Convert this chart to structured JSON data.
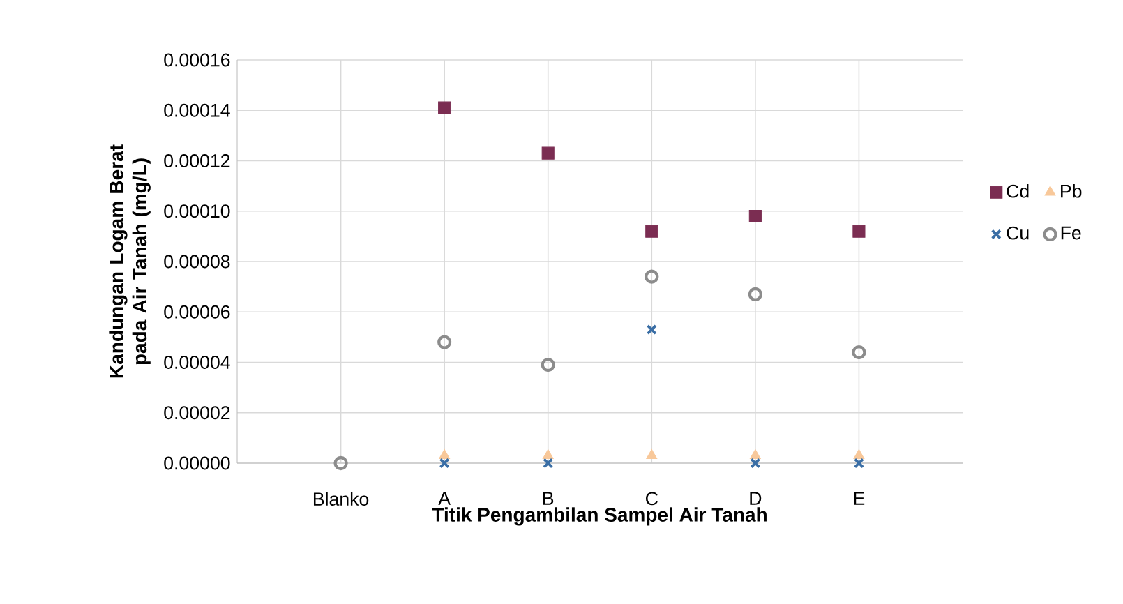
{
  "chart_data": {
    "type": "scatter",
    "xlabel": "Titik Pengambilan Sampel Air Tanah",
    "ylabel": "Kandungan Logam Berat pada Air Tanah (mg/L)",
    "categories": [
      "Blanko",
      "A",
      "B",
      "C",
      "D",
      "E"
    ],
    "series": [
      {
        "name": "Cd",
        "color": "#7b2d52",
        "marker": "square",
        "values": [
          null,
          0.000141,
          0.000123,
          9.2e-05,
          9.8e-05,
          9.2e-05
        ]
      },
      {
        "name": "Pb",
        "color": "#f8c89a",
        "marker": "triangle",
        "values": [
          null,
          3e-06,
          3e-06,
          3e-06,
          3e-06,
          3e-06
        ]
      },
      {
        "name": "Cu",
        "color": "#3a6ea5",
        "marker": "cross",
        "values": [
          null,
          0,
          0,
          5.3e-05,
          0,
          0
        ]
      },
      {
        "name": "Fe",
        "color": "#8c8c8c",
        "marker": "circle",
        "values": [
          0,
          4.8e-05,
          3.9e-05,
          7.4e-05,
          6.7e-05,
          4.4e-05
        ]
      }
    ],
    "ylim": [
      0,
      0.00016
    ],
    "yticks": [
      {
        "value": 0,
        "label": "0.00000"
      },
      {
        "value": 2e-05,
        "label": "0.00002"
      },
      {
        "value": 4e-05,
        "label": "0.00004"
      },
      {
        "value": 6e-05,
        "label": "0.00006"
      },
      {
        "value": 8e-05,
        "label": "0.00008"
      },
      {
        "value": 0.0001,
        "label": "0.00010"
      },
      {
        "value": 0.00012,
        "label": "0.00012"
      },
      {
        "value": 0.00014,
        "label": "0.00014"
      },
      {
        "value": 0.00016,
        "label": "0.00016"
      }
    ],
    "grid": true,
    "legend": "right"
  }
}
